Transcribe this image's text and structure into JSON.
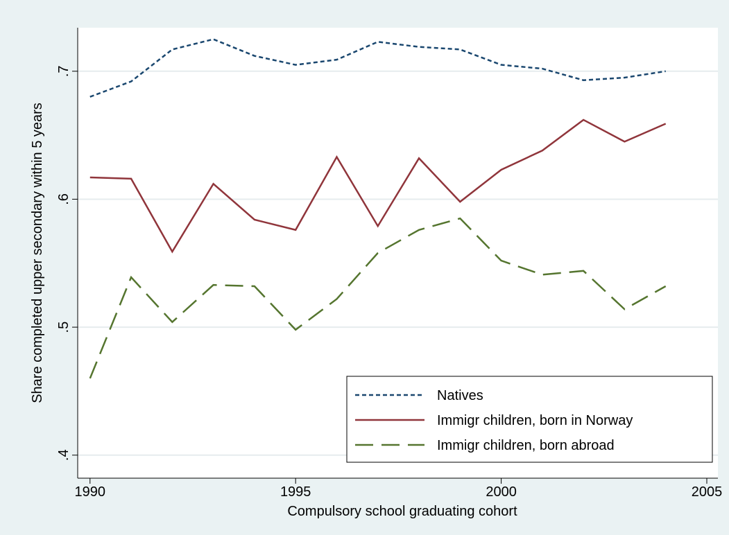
{
  "chart_data": {
    "type": "line",
    "x_label": "Compulsory school graduating cohort",
    "y_label": "Share completed upper secondary within 5 years",
    "x": [
      1990,
      1991,
      1992,
      1993,
      1994,
      1995,
      1996,
      1997,
      1998,
      1999,
      2000,
      2001,
      2002,
      2003,
      2004
    ],
    "series": [
      {
        "name": "Natives",
        "color": "#1a476f",
        "dash": "short",
        "values": [
          0.68,
          0.692,
          0.717,
          0.725,
          0.712,
          0.705,
          0.709,
          0.723,
          0.719,
          0.717,
          0.705,
          0.702,
          0.693,
          0.695,
          0.7
        ]
      },
      {
        "name": "Immigr children, born in Norway",
        "color": "#90353b",
        "dash": "solid",
        "values": [
          0.617,
          0.616,
          0.559,
          0.612,
          0.584,
          0.576,
          0.633,
          0.579,
          0.632,
          0.598,
          0.623,
          0.638,
          0.662,
          0.645,
          0.659
        ]
      },
      {
        "name": "Immigr children, born abroad",
        "color": "#55752f",
        "dash": "long",
        "values": [
          0.46,
          0.539,
          0.504,
          0.533,
          0.532,
          0.498,
          0.522,
          0.558,
          0.576,
          0.585,
          0.552,
          0.541,
          0.544,
          0.514,
          0.532
        ]
      }
    ],
    "xlim": [
      1989.7,
      2005.27
    ],
    "xticks": [
      1990,
      1995,
      2000,
      2005
    ],
    "ylim": [
      0.382,
      0.734
    ],
    "yticks": [
      {
        "value": 0.4,
        "label": ".4"
      },
      {
        "value": 0.5,
        "label": ".5"
      },
      {
        "value": 0.6,
        "label": ".6"
      },
      {
        "value": 0.7,
        "label": ".7"
      }
    ],
    "grid": true,
    "legend_position": "bottom-right"
  }
}
